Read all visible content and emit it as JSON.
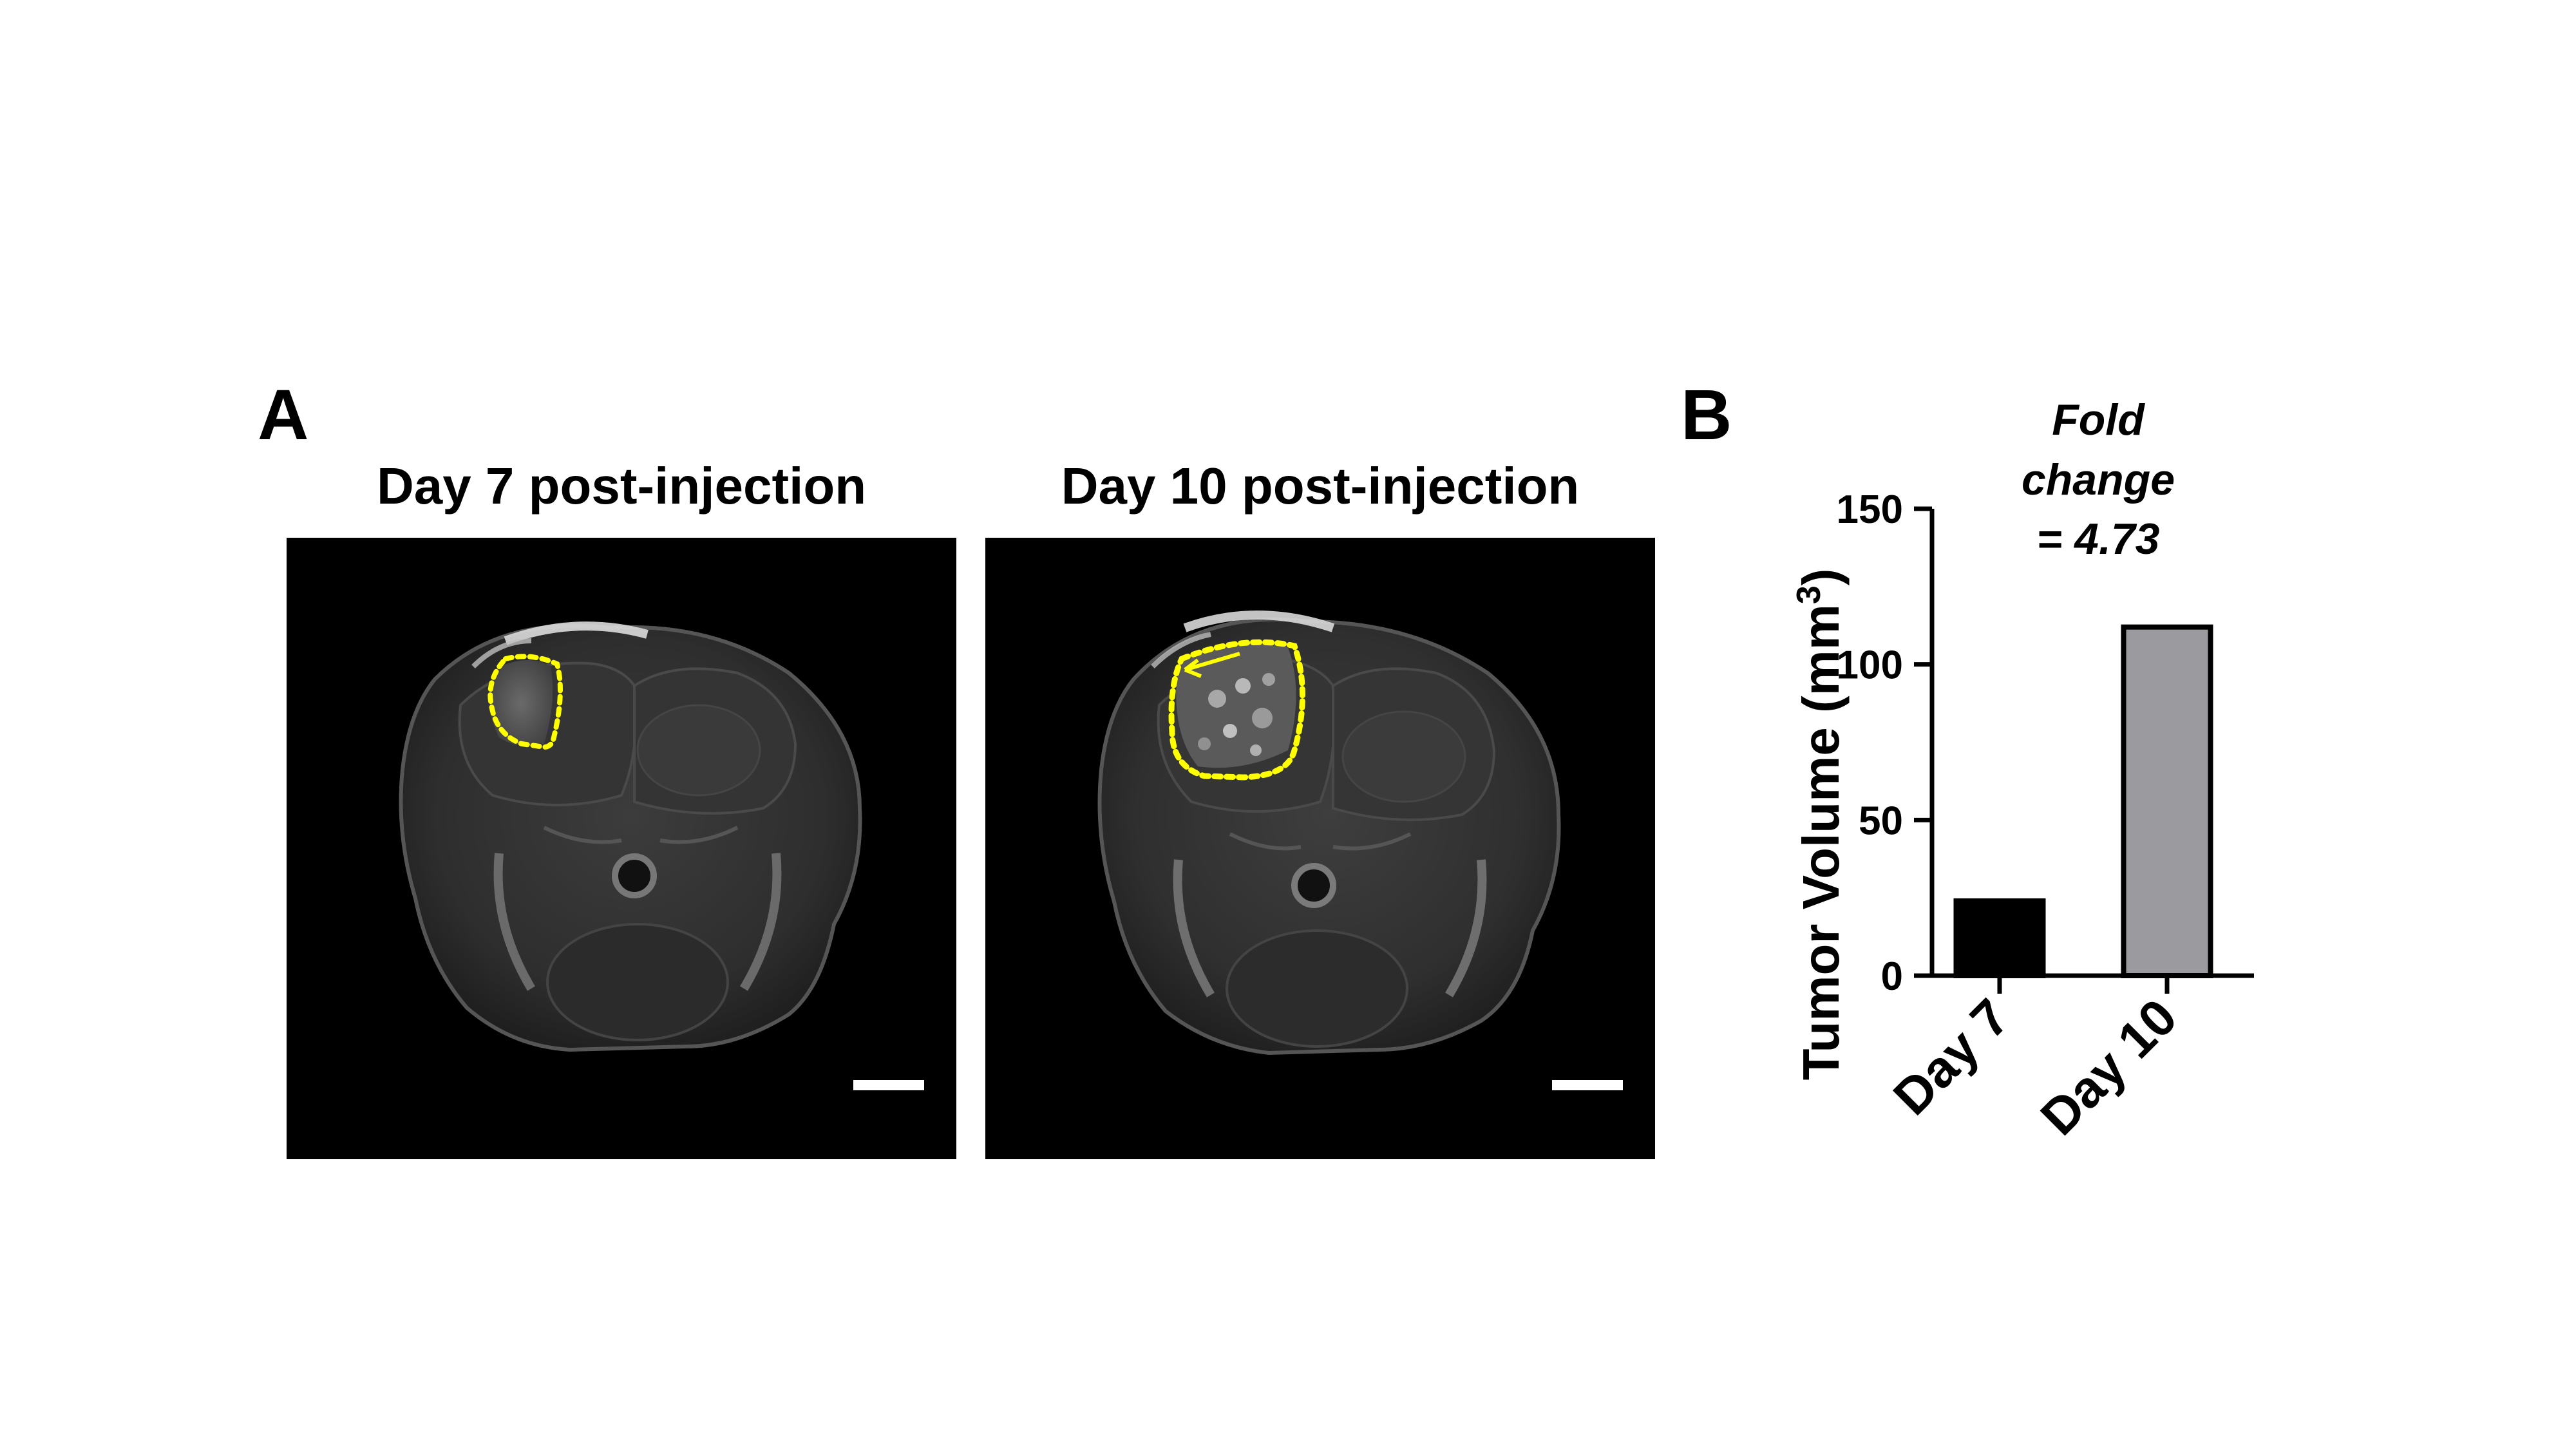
{
  "panel_a": {
    "letter": "A",
    "images": [
      {
        "title": "Day 7 post-injection"
      },
      {
        "title": "Day 10 post-injection"
      }
    ]
  },
  "panel_b": {
    "letter": "B",
    "annotation": [
      "Fold",
      "change",
      "= 4.73"
    ]
  },
  "colors": {
    "outline": "#ffff00",
    "bar_day7": "#000000",
    "bar_day10": "#9b9b9f",
    "scale_bar": "#ffffff"
  },
  "chart_data": {
    "type": "bar",
    "categories": [
      "Day 7",
      "Day 10"
    ],
    "values": [
      24,
      112
    ],
    "ylabel": "Tumor  Volume (mm",
    "ylabel_superscript": "3",
    "ylabel_close": ")",
    "ylim": [
      0,
      150
    ],
    "yticks": [
      0,
      50,
      100,
      150
    ],
    "grid": false,
    "legend": "none"
  }
}
